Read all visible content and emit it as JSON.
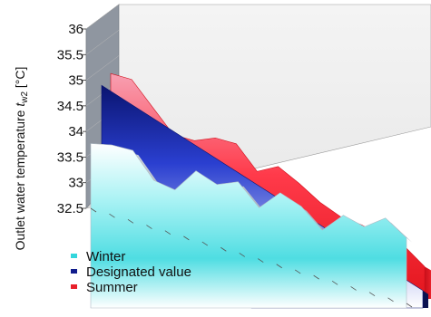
{
  "chart_data": {
    "type": "area",
    "view": "3d-ribbon",
    "ylabel_prefix": "Outlet water temperature ",
    "ylabel_var": "t",
    "ylabel_sub": "w2",
    "ylabel_suffix": " [°C]",
    "ylim": [
      32.5,
      36
    ],
    "yticks": [
      "36",
      "35.5",
      "35",
      "34.5",
      "34",
      "33.5",
      "33",
      "32.5"
    ],
    "grid": true,
    "legend_position": "bottom-left",
    "series": [
      {
        "name": "Summer",
        "color": "#e8202a",
        "values": [
          35.6,
          35.7,
          35.3,
          34.9,
          35.0,
          35.3,
          35.4,
          35.0,
          35.35,
          35.2,
          35.0,
          34.9,
          34.95,
          34.9,
          34.95,
          34.7
        ]
      },
      {
        "name": "Designated value",
        "color": "#101c8c",
        "values": [
          34.85,
          34.8,
          34.75,
          34.7,
          34.65,
          34.6,
          34.55,
          34.5,
          34.45,
          34.4,
          34.35,
          34.3,
          34.25,
          34.2,
          34.15,
          34.1
        ]
      },
      {
        "name": "Winter",
        "color": "#33d6dc",
        "values": [
          34.2,
          34.2,
          34.1,
          33.4,
          33.2,
          33.7,
          33.4,
          33.5,
          32.9,
          33.3,
          33.0,
          32.45,
          32.85,
          32.6,
          32.85,
          32.4
        ]
      }
    ],
    "legend": [
      {
        "label": "Winter",
        "color": "#33d6dc"
      },
      {
        "label": "Designated value",
        "color": "#101c8c"
      },
      {
        "label": "Summer",
        "color": "#e8202a"
      }
    ]
  }
}
